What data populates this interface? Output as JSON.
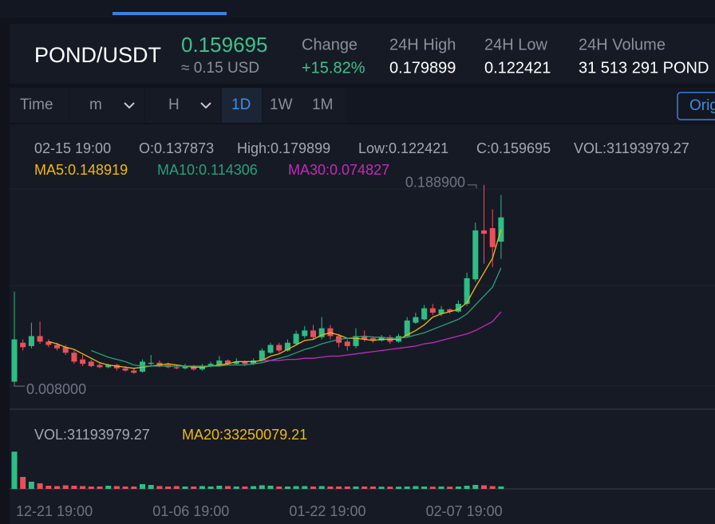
{
  "header": {
    "pair": "POND/USDT",
    "price": "0.159695",
    "price_usd": "≈ 0.15 USD",
    "stats": [
      {
        "label": "Change",
        "value": "+15.82%"
      },
      {
        "label": "24H High",
        "value": "0.179899"
      },
      {
        "label": "24H Low",
        "value": "0.122421"
      },
      {
        "label": "24H Volume",
        "value": "31 513 291 POND"
      }
    ]
  },
  "toolbar": {
    "items": [
      "Time",
      "m",
      "H",
      "1D",
      "1W",
      "1M"
    ],
    "button": "Orig"
  },
  "info": [
    "02-15 19:00",
    "O:0.137873",
    "High:0.179899",
    "Low:0.122421",
    "C:0.159695",
    "VOL:31193979.27"
  ],
  "chart_data": [
    {
      "type": "candlestick",
      "up_color": "#2ebd85",
      "down_color": "#e9505c",
      "categories": [
        "12-21 19:00",
        null,
        null,
        null,
        null,
        null,
        null,
        null,
        null,
        null,
        null,
        null,
        null,
        null,
        null,
        null,
        "01-06 19:00",
        null,
        null,
        null,
        null,
        null,
        null,
        null,
        null,
        null,
        null,
        null,
        null,
        null,
        null,
        null,
        "01-22 19:00",
        null,
        null,
        null,
        null,
        null,
        null,
        null,
        null,
        null,
        null,
        null,
        null,
        null,
        null,
        null,
        "02-07 19:00",
        null,
        null,
        null,
        null,
        null,
        null,
        null,
        null,
        null
      ],
      "open": [
        0.012,
        0.047,
        0.044,
        0.053,
        0.048,
        0.045,
        0.043,
        0.038,
        0.032,
        0.03,
        0.027,
        0.025,
        0.027,
        0.024,
        0.022,
        0.021,
        0.028,
        0.029,
        0.027,
        0.025,
        0.024,
        0.026,
        0.023,
        0.026,
        0.027,
        0.031,
        0.028,
        0.03,
        0.028,
        0.031,
        0.038,
        0.045,
        0.04,
        0.046,
        0.053,
        0.058,
        0.052,
        0.06,
        0.053,
        0.048,
        0.044,
        0.053,
        0.051,
        0.049,
        0.052,
        0.048,
        0.053,
        0.065,
        0.068,
        0.078,
        0.073,
        0.077,
        0.075,
        0.082,
        0.104,
        0.148,
        0.15,
        0.137873
      ],
      "high": [
        0.093,
        0.05,
        0.065,
        0.066,
        0.05,
        0.047,
        0.045,
        0.04,
        0.036,
        0.032,
        0.029,
        0.028,
        0.028,
        0.026,
        0.024,
        0.032,
        0.036,
        0.031,
        0.029,
        0.027,
        0.028,
        0.027,
        0.028,
        0.03,
        0.035,
        0.032,
        0.033,
        0.031,
        0.033,
        0.042,
        0.047,
        0.047,
        0.05,
        0.058,
        0.062,
        0.063,
        0.07,
        0.063,
        0.055,
        0.05,
        0.06,
        0.058,
        0.053,
        0.054,
        0.054,
        0.055,
        0.07,
        0.074,
        0.081,
        0.082,
        0.08,
        0.078,
        0.085,
        0.11,
        0.155,
        0.1889,
        0.167,
        0.179899
      ],
      "low": [
        0.008,
        0.04,
        0.042,
        0.046,
        0.043,
        0.04,
        0.036,
        0.028,
        0.026,
        0.025,
        0.024,
        0.024,
        0.022,
        0.021,
        0.019,
        0.02,
        0.026,
        0.025,
        0.024,
        0.023,
        0.023,
        0.022,
        0.022,
        0.025,
        0.026,
        0.027,
        0.027,
        0.026,
        0.027,
        0.03,
        0.037,
        0.038,
        0.039,
        0.045,
        0.051,
        0.05,
        0.05,
        0.05,
        0.043,
        0.04,
        0.042,
        0.048,
        0.047,
        0.048,
        0.046,
        0.047,
        0.052,
        0.064,
        0.067,
        0.072,
        0.071,
        0.073,
        0.074,
        0.08,
        0.102,
        0.118,
        0.115,
        0.122421
      ],
      "close": [
        0.05,
        0.043,
        0.053,
        0.048,
        0.045,
        0.042,
        0.038,
        0.03,
        0.028,
        0.026,
        0.025,
        0.027,
        0.024,
        0.022,
        0.02,
        0.03,
        0.029,
        0.026,
        0.025,
        0.024,
        0.026,
        0.023,
        0.026,
        0.028,
        0.031,
        0.028,
        0.03,
        0.028,
        0.031,
        0.04,
        0.045,
        0.04,
        0.047,
        0.055,
        0.058,
        0.052,
        0.06,
        0.053,
        0.047,
        0.044,
        0.053,
        0.05,
        0.049,
        0.052,
        0.048,
        0.053,
        0.067,
        0.07,
        0.078,
        0.074,
        0.077,
        0.075,
        0.082,
        0.105,
        0.148,
        0.145,
        0.133,
        0.159695
      ],
      "series": [
        {
          "name": "MA5:0.148919",
          "color": "#f0b90b",
          "values": [
            null,
            null,
            null,
            null,
            0.048,
            0.046,
            0.043,
            0.041,
            0.037,
            0.033,
            0.029,
            0.027,
            0.026,
            0.025,
            0.024,
            0.025,
            0.026,
            0.027,
            0.028,
            0.027,
            0.026,
            0.025,
            0.025,
            0.026,
            0.027,
            0.028,
            0.03,
            0.03,
            0.03,
            0.031,
            0.035,
            0.037,
            0.041,
            0.045,
            0.049,
            0.05,
            0.054,
            0.056,
            0.054,
            0.051,
            0.051,
            0.05,
            0.049,
            0.05,
            0.05,
            0.05,
            0.054,
            0.058,
            0.063,
            0.07,
            0.073,
            0.075,
            0.077,
            0.083,
            0.097,
            0.11,
            0.123,
            0.148919
          ]
        },
        {
          "name": "MA10:0.114306",
          "color": "#26a17b",
          "values": [
            null,
            null,
            null,
            null,
            null,
            null,
            null,
            null,
            null,
            0.04,
            0.037,
            0.034,
            0.032,
            0.03,
            0.027,
            0.026,
            0.026,
            0.026,
            0.026,
            0.026,
            0.026,
            0.026,
            0.026,
            0.026,
            0.026,
            0.027,
            0.027,
            0.027,
            0.028,
            0.029,
            0.031,
            0.033,
            0.035,
            0.038,
            0.041,
            0.043,
            0.046,
            0.048,
            0.05,
            0.051,
            0.052,
            0.053,
            0.052,
            0.052,
            0.051,
            0.051,
            0.052,
            0.054,
            0.056,
            0.059,
            0.062,
            0.065,
            0.068,
            0.073,
            0.081,
            0.089,
            0.097,
            0.114306
          ]
        },
        {
          "name": "MA30:0.074827",
          "color": "#c42ab8",
          "values": [
            null,
            null,
            null,
            null,
            null,
            null,
            null,
            null,
            null,
            null,
            null,
            null,
            null,
            null,
            null,
            null,
            null,
            null,
            null,
            null,
            null,
            null,
            null,
            null,
            null,
            null,
            null,
            null,
            null,
            0.031,
            0.031,
            0.031,
            0.032,
            0.032,
            0.033,
            0.033,
            0.034,
            0.035,
            0.035,
            0.036,
            0.037,
            0.038,
            0.039,
            0.04,
            0.041,
            0.042,
            0.043,
            0.044,
            0.046,
            0.047,
            0.049,
            0.051,
            0.053,
            0.055,
            0.058,
            0.062,
            0.066,
            0.074827
          ]
        }
      ],
      "annotations": [
        {
          "value": 0.1889,
          "label": "0.188900"
        },
        {
          "value": 0.008,
          "label": "0.008000"
        }
      ],
      "ylim": [
        -0.012,
        0.244
      ]
    },
    {
      "type": "bar",
      "legend": [
        "VOL:31193979.27",
        "MA20:33250079.21"
      ],
      "values": [
        467000000,
        150000000,
        90000000,
        70000000,
        40000000,
        35000000,
        45000000,
        40000000,
        35000000,
        30000000,
        30000000,
        40000000,
        35000000,
        30000000,
        30000000,
        60000000,
        50000000,
        35000000,
        30000000,
        35000000,
        30000000,
        30000000,
        35000000,
        30000000,
        40000000,
        35000000,
        30000000,
        30000000,
        35000000,
        45000000,
        40000000,
        30000000,
        30000000,
        35000000,
        35000000,
        30000000,
        35000000,
        30000000,
        30000000,
        30000000,
        30000000,
        30000000,
        30000000,
        28000000,
        28000000,
        28000000,
        30000000,
        35000000,
        30000000,
        28000000,
        30000000,
        28000000,
        30000000,
        40000000,
        50000000,
        45000000,
        35000000,
        31193979.27
      ],
      "ylim": [
        0,
        480000000
      ]
    }
  ]
}
